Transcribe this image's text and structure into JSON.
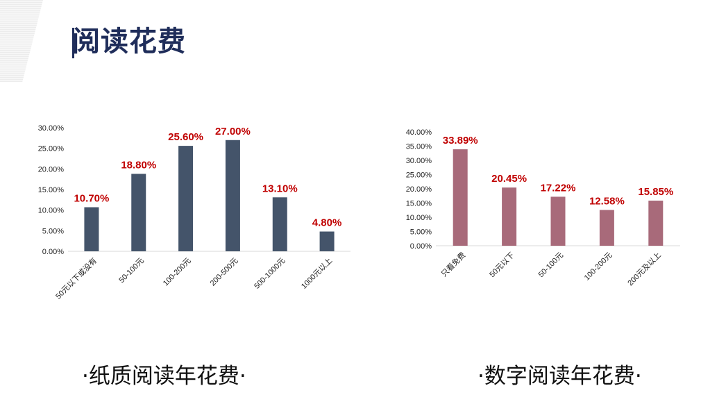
{
  "slide": {
    "title": "阅读花费",
    "captions": [
      "·纸质阅读年花费·",
      "·数字阅读年花费·"
    ]
  },
  "colors": {
    "title": "#1f2d5a",
    "value_label": "#c00000",
    "axis_text": "#222222"
  },
  "chart_data": [
    {
      "type": "bar",
      "categories": [
        "50元以下或没有",
        "50-100元",
        "100-200元",
        "200-500元",
        "500-1000元",
        "1000元以上"
      ],
      "series": [
        {
          "values": [
            10.7,
            18.8,
            25.6,
            27.0,
            13.1,
            4.8
          ],
          "color": "#44546a"
        }
      ],
      "data_labels": [
        "10.70%",
        "18.80%",
        "25.60%",
        "27.00%",
        "13.10%",
        "4.80%"
      ],
      "y_ticks": [
        "0.00%",
        "5.00%",
        "10.00%",
        "15.00%",
        "20.00%",
        "25.00%",
        "30.00%"
      ],
      "ylim": [
        0,
        30
      ],
      "grid": false,
      "legend": "none"
    },
    {
      "type": "bar",
      "categories": [
        "只看免费",
        "50元以下",
        "50-100元",
        "100-200元",
        "200元及以上"
      ],
      "series": [
        {
          "values": [
            33.89,
            20.45,
            17.22,
            12.58,
            15.85
          ],
          "color": "#a86a7a"
        }
      ],
      "data_labels": [
        "33.89%",
        "20.45%",
        "17.22%",
        "12.58%",
        "15.85%"
      ],
      "y_ticks": [
        "0.00%",
        "5.00%",
        "10.00%",
        "15.00%",
        "20.00%",
        "25.00%",
        "30.00%",
        "35.00%",
        "40.00%"
      ],
      "ylim": [
        0,
        40
      ],
      "grid": false,
      "legend": "none"
    }
  ]
}
